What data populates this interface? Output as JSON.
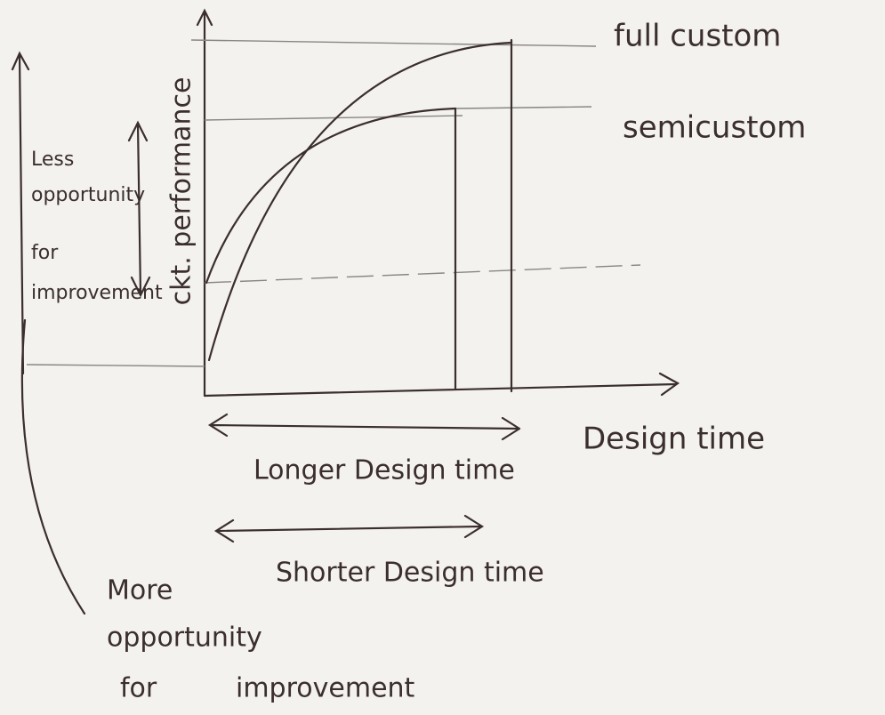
{
  "y_axis_label": "ckt. performance",
  "x_axis_label": "Design time",
  "curves": [
    {
      "label": "full custom"
    },
    {
      "label": "semicustom"
    }
  ],
  "left_note": [
    "Less",
    "opportunity",
    "for",
    "improvement"
  ],
  "longer_label": "Longer Design time",
  "shorter_label": "Shorter Design time",
  "bottom_note": [
    "More",
    "opportunity",
    "for",
    "improvement"
  ]
}
